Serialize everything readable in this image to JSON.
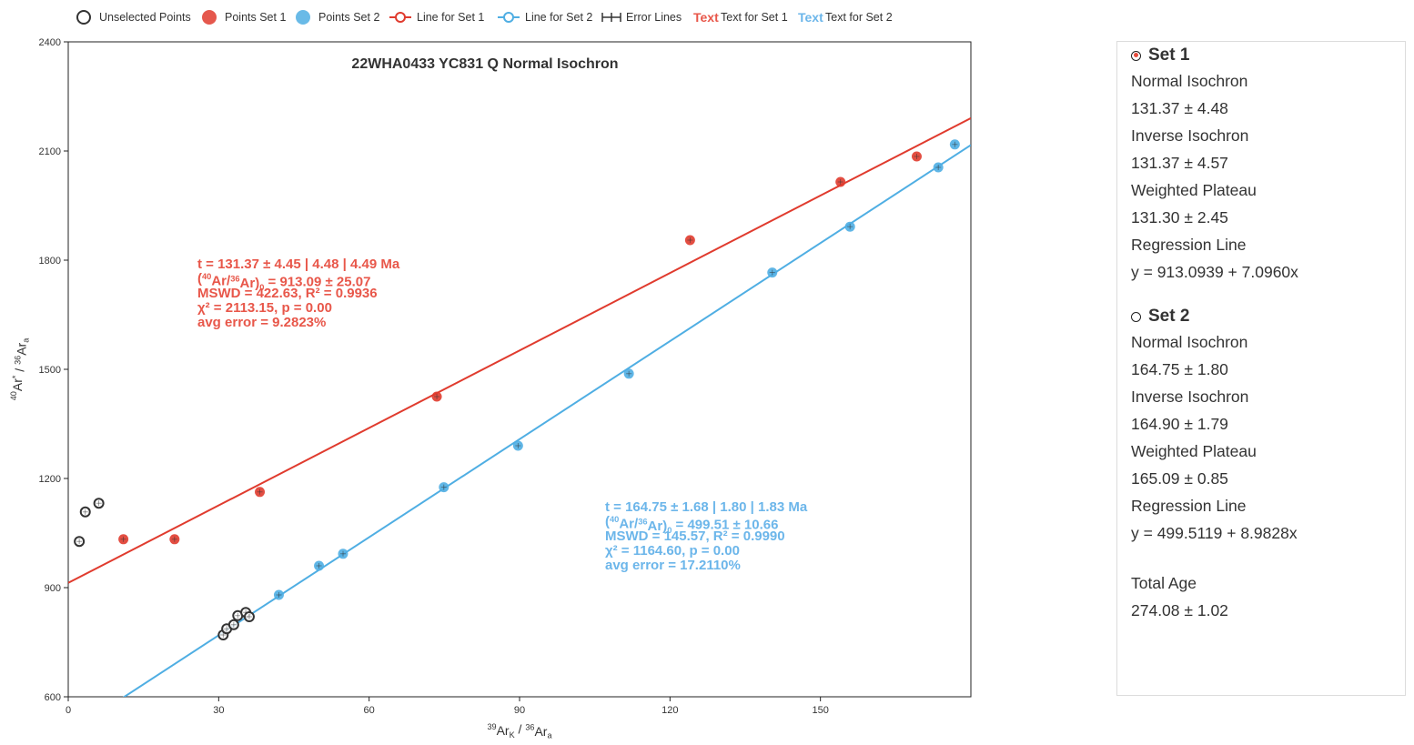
{
  "legend": [
    {
      "key": "unselected",
      "label": "Unselected Points",
      "marker": "hollow-circle"
    },
    {
      "key": "points1",
      "label": "Points Set 1",
      "marker": "red-circle"
    },
    {
      "key": "points2",
      "label": "Points Set 2",
      "marker": "blue-circle"
    },
    {
      "key": "line1",
      "label": "Line for Set 1",
      "marker": "red-line"
    },
    {
      "key": "line2",
      "label": "Line for Set 2",
      "marker": "blue-line"
    },
    {
      "key": "error",
      "label": "Error Lines",
      "marker": "error-bar"
    },
    {
      "key": "text1",
      "label": "Text for Set 1",
      "glyph": "Text",
      "marker": "red-text"
    },
    {
      "key": "text2",
      "label": "Text for Set 2",
      "glyph": "Text",
      "marker": "blue-text"
    }
  ],
  "colors": {
    "set1": "#e03b2e",
    "set2": "#4faee3",
    "unselected": "#333333",
    "set1_text": "#e8574a",
    "set2_text": "#6cb6ea"
  },
  "chart_data": {
    "type": "scatter",
    "title": "22WHA0433 YC831 Q Normal Isochron",
    "xlabel": "39ArK / 36Ara",
    "ylabel": "40Ar* / 36Ara",
    "xlim": [
      0,
      180
    ],
    "ylim": [
      600,
      2400
    ],
    "xticks": [
      0,
      30,
      60,
      90,
      120,
      150
    ],
    "yticks": [
      600,
      900,
      1200,
      1500,
      1800,
      2100,
      2400
    ],
    "grid": false,
    "legend_position": "top",
    "series": [
      {
        "name": "Unselected Points",
        "points": [
          [
            2.2,
            1027
          ],
          [
            3.4,
            1108
          ],
          [
            6.1,
            1132
          ],
          [
            30.9,
            770
          ],
          [
            31.6,
            787
          ],
          [
            33.0,
            798
          ],
          [
            33.8,
            823
          ],
          [
            35.4,
            832
          ],
          [
            36.1,
            820
          ]
        ]
      },
      {
        "name": "Points Set 1",
        "points": [
          [
            11.0,
            1033
          ],
          [
            21.2,
            1033
          ],
          [
            38.2,
            1163
          ],
          [
            73.5,
            1425
          ],
          [
            124.0,
            1855
          ],
          [
            154.0,
            2015
          ],
          [
            169.2,
            2085
          ]
        ]
      },
      {
        "name": "Points Set 2",
        "points": [
          [
            42.0,
            880
          ],
          [
            50.0,
            960
          ],
          [
            54.8,
            993
          ],
          [
            74.9,
            1176
          ],
          [
            89.7,
            1290
          ],
          [
            111.8,
            1488
          ],
          [
            140.4,
            1766
          ],
          [
            155.9,
            1892
          ],
          [
            173.5,
            2055
          ],
          [
            176.8,
            2118
          ]
        ]
      }
    ],
    "lines": [
      {
        "name": "Line for Set 1",
        "intercept": 913.0939,
        "slope": 7.096
      },
      {
        "name": "Line for Set 2",
        "intercept": 499.5119,
        "slope": 8.9828
      }
    ],
    "annotations": {
      "set1": [
        "t = 131.37 ± 4.45 | 4.48 | 4.49 Ma",
        "(40Ar/36Ar)0 = 913.09 ± 25.07",
        "MSWD = 422.63, R² = 0.9936",
        "χ² = 2113.15, p = 0.00",
        "avg error = 9.2823%"
      ],
      "set2": [
        "t = 164.75 ± 1.68 | 1.80 | 1.83 Ma",
        "(40Ar/36Ar)0 = 499.51 ± 10.66",
        "MSWD = 145.57, R² = 0.9990",
        "χ² = 1164.60, p = 0.00",
        "avg error = 17.2110%"
      ]
    }
  },
  "panel": {
    "set1": {
      "title": "Set 1",
      "selected": true,
      "rows": [
        "Normal Isochron",
        "131.37 ± 4.48",
        "Inverse Isochron",
        "131.37 ± 4.57",
        "Weighted Plateau",
        "131.30 ± 2.45",
        "Regression Line",
        "y = 913.0939 + 7.0960x"
      ]
    },
    "set2": {
      "title": "Set 2",
      "selected": false,
      "rows": [
        "Normal Isochron",
        "164.75 ± 1.80",
        "Inverse Isochron",
        "164.90 ± 1.79",
        "Weighted Plateau",
        "165.09 ± 0.85",
        "Regression Line",
        "y = 499.5119 + 8.9828x"
      ]
    },
    "total": {
      "rows": [
        "Total Age",
        "274.08 ± 1.02"
      ]
    }
  }
}
